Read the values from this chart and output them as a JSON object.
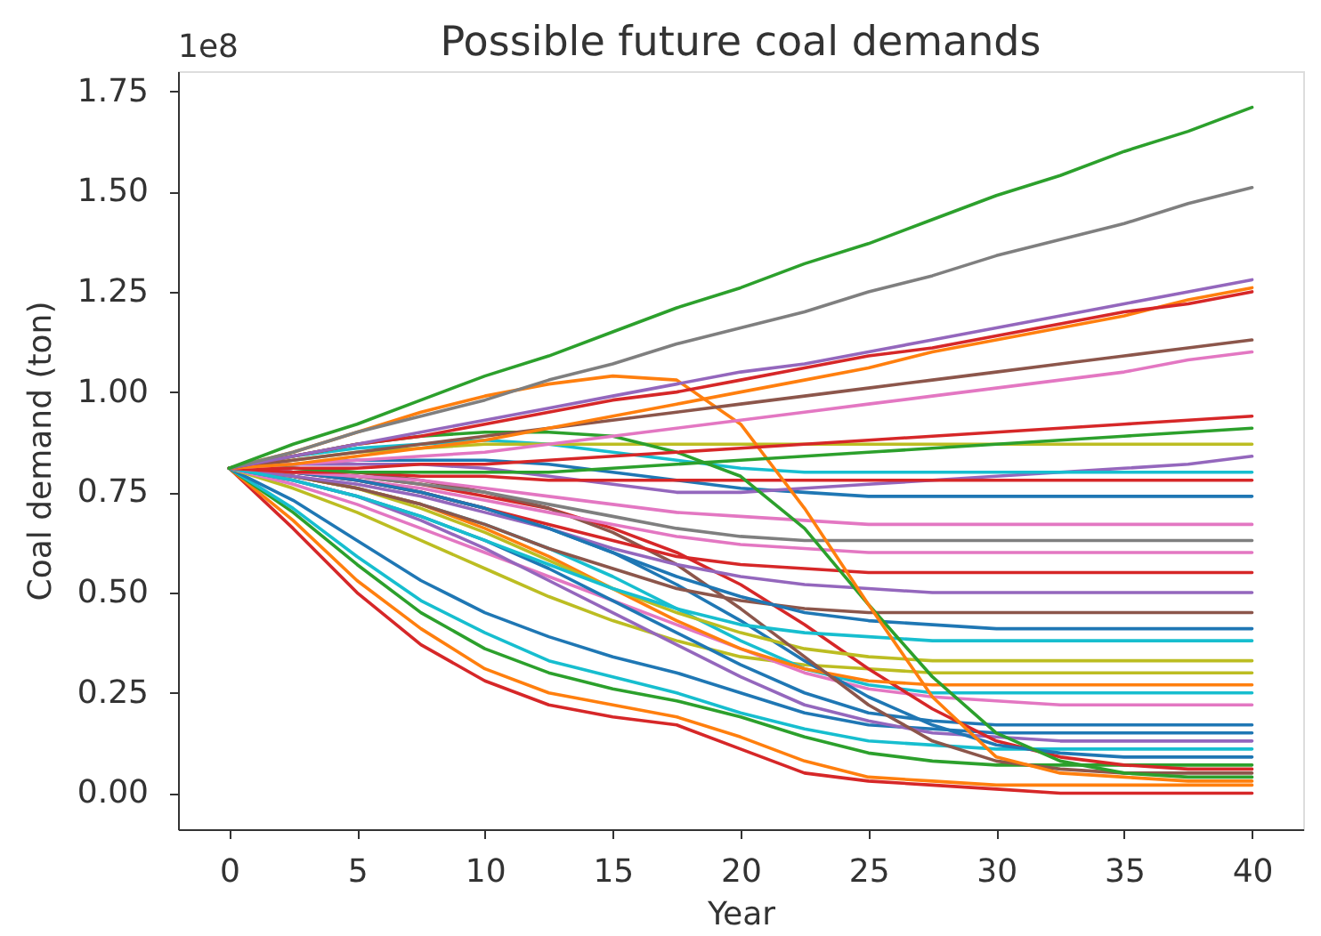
{
  "chart_data": {
    "type": "line",
    "title": "Possible future coal demands",
    "xlabel": "Year",
    "ylabel": "Coal demand (ton)",
    "annotations": [
      "1e8"
    ],
    "x": [
      0,
      2.5,
      5,
      7.5,
      10,
      12.5,
      15,
      17.5,
      20,
      22.5,
      25,
      27.5,
      30,
      32.5,
      35,
      37.5,
      40
    ],
    "xlim": [
      -2,
      42
    ],
    "ylim": [
      -0.09,
      1.8
    ],
    "xticks": [
      0,
      5,
      10,
      15,
      20,
      25,
      30,
      35,
      40
    ],
    "yticks": [
      {
        "value": 0,
        "label": "0.00"
      },
      {
        "value": 0.25,
        "label": "0.25"
      },
      {
        "value": 0.5,
        "label": "0.50"
      },
      {
        "value": 0.75,
        "label": "0.75"
      },
      {
        "value": 1.0,
        "label": "1.00"
      },
      {
        "value": 1.25,
        "label": "1.25"
      },
      {
        "value": 1.5,
        "label": "1.50"
      },
      {
        "value": 1.75,
        "label": "1.75"
      }
    ],
    "series": [
      {
        "color": "#d62728",
        "values": [
          0.81,
          0.66,
          0.5,
          0.37,
          0.28,
          0.22,
          0.19,
          0.17,
          0.11,
          0.05,
          0.03,
          0.02,
          0.01,
          0.0,
          0.0,
          0.0,
          0.0
        ]
      },
      {
        "color": "#ff7f0e",
        "values": [
          0.81,
          0.68,
          0.53,
          0.41,
          0.31,
          0.25,
          0.22,
          0.19,
          0.14,
          0.08,
          0.04,
          0.03,
          0.02,
          0.02,
          0.02,
          0.02,
          0.02
        ]
      },
      {
        "color": "#2ca02c",
        "values": [
          0.81,
          0.7,
          0.57,
          0.45,
          0.36,
          0.3,
          0.26,
          0.23,
          0.19,
          0.14,
          0.1,
          0.08,
          0.07,
          0.07,
          0.07,
          0.07,
          0.07
        ]
      },
      {
        "color": "#17becf",
        "values": [
          0.81,
          0.71,
          0.59,
          0.48,
          0.4,
          0.33,
          0.29,
          0.25,
          0.2,
          0.16,
          0.13,
          0.12,
          0.11,
          0.11,
          0.11,
          0.11,
          0.11
        ]
      },
      {
        "color": "#1f77b4",
        "values": [
          0.81,
          0.73,
          0.63,
          0.53,
          0.45,
          0.39,
          0.34,
          0.3,
          0.25,
          0.2,
          0.17,
          0.16,
          0.15,
          0.15,
          0.15,
          0.15,
          0.15
        ]
      },
      {
        "color": "#bcbd22",
        "values": [
          0.81,
          0.76,
          0.7,
          0.63,
          0.56,
          0.49,
          0.43,
          0.38,
          0.34,
          0.32,
          0.31,
          0.3,
          0.3,
          0.3,
          0.3,
          0.3,
          0.3
        ]
      },
      {
        "color": "#e377c2",
        "values": [
          0.81,
          0.77,
          0.72,
          0.66,
          0.6,
          0.54,
          0.48,
          0.42,
          0.36,
          0.3,
          0.26,
          0.24,
          0.23,
          0.22,
          0.22,
          0.22,
          0.22
        ]
      },
      {
        "color": "#1f77b4",
        "values": [
          0.81,
          0.78,
          0.74,
          0.69,
          0.63,
          0.56,
          0.48,
          0.4,
          0.32,
          0.25,
          0.2,
          0.18,
          0.17,
          0.17,
          0.17,
          0.17,
          0.17
        ]
      },
      {
        "color": "#17becf",
        "values": [
          0.81,
          0.79,
          0.76,
          0.72,
          0.67,
          0.61,
          0.54,
          0.46,
          0.38,
          0.31,
          0.27,
          0.25,
          0.25,
          0.25,
          0.25,
          0.25,
          0.25
        ]
      },
      {
        "color": "#9467bd",
        "values": [
          0.81,
          0.78,
          0.74,
          0.68,
          0.61,
          0.53,
          0.45,
          0.37,
          0.29,
          0.22,
          0.18,
          0.15,
          0.14,
          0.13,
          0.13,
          0.13,
          0.13
        ]
      },
      {
        "color": "#d62728",
        "values": [
          0.81,
          0.8,
          0.79,
          0.77,
          0.74,
          0.71,
          0.66,
          0.6,
          0.52,
          0.42,
          0.31,
          0.21,
          0.13,
          0.09,
          0.07,
          0.06,
          0.06
        ]
      },
      {
        "color": "#1f77b4",
        "values": [
          0.81,
          0.8,
          0.78,
          0.75,
          0.71,
          0.66,
          0.6,
          0.52,
          0.43,
          0.33,
          0.24,
          0.17,
          0.12,
          0.1,
          0.09,
          0.09,
          0.09
        ]
      },
      {
        "color": "#ff7f0e",
        "values": [
          0.81,
          0.79,
          0.76,
          0.72,
          0.66,
          0.59,
          0.51,
          0.43,
          0.36,
          0.31,
          0.28,
          0.27,
          0.27,
          0.27,
          0.27,
          0.27,
          0.27
        ]
      },
      {
        "color": "#bcbd22",
        "values": [
          0.81,
          0.79,
          0.76,
          0.71,
          0.65,
          0.58,
          0.51,
          0.45,
          0.4,
          0.36,
          0.34,
          0.33,
          0.33,
          0.33,
          0.33,
          0.33,
          0.33
        ]
      },
      {
        "color": "#8c564b",
        "values": [
          0.81,
          0.81,
          0.8,
          0.78,
          0.75,
          0.71,
          0.65,
          0.57,
          0.46,
          0.34,
          0.22,
          0.13,
          0.08,
          0.06,
          0.05,
          0.05,
          0.05
        ]
      },
      {
        "color": "#e377c2",
        "values": [
          0.81,
          0.8,
          0.78,
          0.76,
          0.73,
          0.7,
          0.67,
          0.64,
          0.62,
          0.61,
          0.6,
          0.6,
          0.6,
          0.6,
          0.6,
          0.6,
          0.6
        ]
      },
      {
        "color": "#7f7f7f",
        "values": [
          0.81,
          0.8,
          0.79,
          0.77,
          0.75,
          0.72,
          0.69,
          0.66,
          0.64,
          0.63,
          0.63,
          0.63,
          0.63,
          0.63,
          0.63,
          0.63,
          0.63
        ]
      },
      {
        "color": "#d62728",
        "values": [
          0.81,
          0.8,
          0.78,
          0.75,
          0.71,
          0.67,
          0.63,
          0.59,
          0.57,
          0.56,
          0.55,
          0.55,
          0.55,
          0.55,
          0.55,
          0.55,
          0.55
        ]
      },
      {
        "color": "#8c564b",
        "values": [
          0.81,
          0.79,
          0.76,
          0.72,
          0.67,
          0.61,
          0.56,
          0.51,
          0.48,
          0.46,
          0.45,
          0.45,
          0.45,
          0.45,
          0.45,
          0.45,
          0.45
        ]
      },
      {
        "color": "#9467bd",
        "values": [
          0.81,
          0.79,
          0.77,
          0.74,
          0.7,
          0.66,
          0.61,
          0.57,
          0.54,
          0.52,
          0.51,
          0.5,
          0.5,
          0.5,
          0.5,
          0.5,
          0.5
        ]
      },
      {
        "color": "#1f77b4",
        "values": [
          0.81,
          0.8,
          0.78,
          0.75,
          0.71,
          0.66,
          0.6,
          0.54,
          0.49,
          0.45,
          0.43,
          0.42,
          0.41,
          0.41,
          0.41,
          0.41,
          0.41
        ]
      },
      {
        "color": "#17becf",
        "values": [
          0.81,
          0.78,
          0.74,
          0.69,
          0.63,
          0.57,
          0.51,
          0.46,
          0.42,
          0.4,
          0.39,
          0.38,
          0.38,
          0.38,
          0.38,
          0.38,
          0.38
        ]
      },
      {
        "color": "#e377c2",
        "values": [
          0.81,
          0.8,
          0.79,
          0.78,
          0.76,
          0.74,
          0.72,
          0.7,
          0.69,
          0.68,
          0.67,
          0.67,
          0.67,
          0.67,
          0.67,
          0.67,
          0.67
        ]
      },
      {
        "color": "#1f77b4",
        "values": [
          0.81,
          0.82,
          0.83,
          0.83,
          0.83,
          0.82,
          0.8,
          0.78,
          0.76,
          0.75,
          0.74,
          0.74,
          0.74,
          0.74,
          0.74,
          0.74,
          0.74
        ]
      },
      {
        "color": "#9467bd",
        "values": [
          0.81,
          0.82,
          0.82,
          0.82,
          0.81,
          0.79,
          0.77,
          0.75,
          0.75,
          0.76,
          0.77,
          0.78,
          0.79,
          0.8,
          0.81,
          0.82,
          0.84
        ]
      },
      {
        "color": "#17becf",
        "values": [
          0.81,
          0.84,
          0.86,
          0.87,
          0.88,
          0.87,
          0.85,
          0.83,
          0.81,
          0.8,
          0.8,
          0.8,
          0.8,
          0.8,
          0.8,
          0.8,
          0.8
        ]
      },
      {
        "color": "#d62728",
        "values": [
          0.81,
          0.8,
          0.8,
          0.79,
          0.79,
          0.78,
          0.78,
          0.78,
          0.78,
          0.78,
          0.78,
          0.78,
          0.78,
          0.78,
          0.78,
          0.78,
          0.78
        ]
      },
      {
        "color": "#bcbd22",
        "values": [
          0.81,
          0.83,
          0.85,
          0.86,
          0.87,
          0.87,
          0.87,
          0.87,
          0.87,
          0.87,
          0.87,
          0.87,
          0.87,
          0.87,
          0.87,
          0.87,
          0.87
        ]
      },
      {
        "color": "#2ca02c",
        "values": [
          0.81,
          0.84,
          0.87,
          0.89,
          0.9,
          0.9,
          0.89,
          0.85,
          0.79,
          0.66,
          0.47,
          0.29,
          0.15,
          0.08,
          0.05,
          0.04,
          0.04
        ]
      },
      {
        "color": "#ff7f0e",
        "values": [
          0.81,
          0.85,
          0.9,
          0.95,
          0.99,
          1.02,
          1.04,
          1.03,
          0.92,
          0.71,
          0.47,
          0.24,
          0.09,
          0.05,
          0.04,
          0.03,
          0.03
        ]
      },
      {
        "color": "#2ca02c",
        "values": [
          0.81,
          0.81,
          0.8,
          0.8,
          0.8,
          0.8,
          0.81,
          0.82,
          0.83,
          0.84,
          0.85,
          0.86,
          0.87,
          0.88,
          0.89,
          0.9,
          0.91
        ]
      },
      {
        "color": "#d62728",
        "values": [
          0.81,
          0.81,
          0.81,
          0.82,
          0.82,
          0.83,
          0.84,
          0.85,
          0.86,
          0.87,
          0.88,
          0.89,
          0.9,
          0.91,
          0.92,
          0.93,
          0.94
        ]
      },
      {
        "color": "#e377c2",
        "values": [
          0.81,
          0.82,
          0.83,
          0.84,
          0.85,
          0.87,
          0.89,
          0.91,
          0.93,
          0.95,
          0.97,
          0.99,
          1.01,
          1.03,
          1.05,
          1.08,
          1.1
        ]
      },
      {
        "color": "#8c564b",
        "values": [
          0.81,
          0.83,
          0.85,
          0.87,
          0.89,
          0.91,
          0.93,
          0.95,
          0.97,
          0.99,
          1.01,
          1.03,
          1.05,
          1.07,
          1.09,
          1.11,
          1.13
        ]
      },
      {
        "color": "#ff7f0e",
        "values": [
          0.81,
          0.82,
          0.84,
          0.86,
          0.88,
          0.91,
          0.94,
          0.97,
          1.0,
          1.03,
          1.06,
          1.1,
          1.13,
          1.16,
          1.19,
          1.23,
          1.26
        ]
      },
      {
        "color": "#d62728",
        "values": [
          0.81,
          0.84,
          0.87,
          0.89,
          0.92,
          0.95,
          0.98,
          1.0,
          1.03,
          1.06,
          1.09,
          1.11,
          1.14,
          1.17,
          1.2,
          1.22,
          1.25
        ]
      },
      {
        "color": "#9467bd",
        "values": [
          0.81,
          0.84,
          0.87,
          0.9,
          0.93,
          0.96,
          0.99,
          1.02,
          1.05,
          1.07,
          1.1,
          1.13,
          1.16,
          1.19,
          1.22,
          1.25,
          1.28
        ]
      },
      {
        "color": "#7f7f7f",
        "values": [
          0.81,
          0.85,
          0.9,
          0.94,
          0.98,
          1.03,
          1.07,
          1.12,
          1.16,
          1.2,
          1.25,
          1.29,
          1.34,
          1.38,
          1.42,
          1.47,
          1.51
        ]
      },
      {
        "color": "#2ca02c",
        "values": [
          0.81,
          0.87,
          0.92,
          0.98,
          1.04,
          1.09,
          1.15,
          1.21,
          1.26,
          1.32,
          1.37,
          1.43,
          1.49,
          1.54,
          1.6,
          1.65,
          1.71
        ]
      }
    ]
  }
}
